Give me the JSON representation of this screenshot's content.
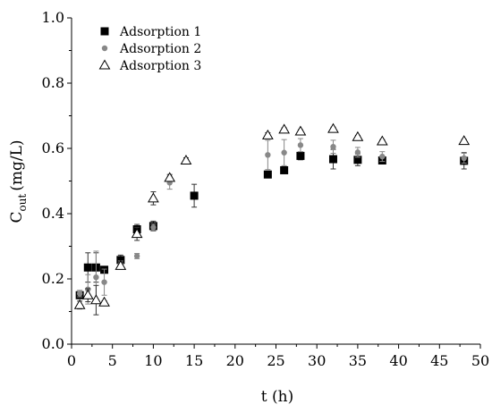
{
  "chart_data": {
    "type": "scatter",
    "title": "",
    "xlabel": "t (h)",
    "ylabel": {
      "main": "C",
      "subscript": "out",
      "unit": "(mg/L)"
    },
    "xlim": [
      0,
      50
    ],
    "ylim": [
      0.0,
      1.0
    ],
    "x_ticks": [
      "0",
      "5",
      "10",
      "15",
      "20",
      "25",
      "30",
      "35",
      "40",
      "45",
      "50"
    ],
    "y_ticks": [
      "0.0",
      "0.2",
      "0.4",
      "0.6",
      "0.8",
      "1.0"
    ],
    "grid": false,
    "legend_position": "top-left",
    "series": [
      {
        "name": "Adsorption 1",
        "marker": "square",
        "color": "#000000",
        "points": [
          {
            "x": 1,
            "y": 0.15,
            "err": 0.01
          },
          {
            "x": 2,
            "y": 0.235,
            "err": 0.045
          },
          {
            "x": 3,
            "y": 0.235,
            "err": 0.045
          },
          {
            "x": 4,
            "y": 0.228,
            "err": 0.01
          },
          {
            "x": 6,
            "y": 0.258,
            "err": 0.015
          },
          {
            "x": 8,
            "y": 0.352,
            "err": 0.015
          },
          {
            "x": 10,
            "y": 0.362,
            "err": 0.015
          },
          {
            "x": 15,
            "y": 0.455,
            "err": 0.035
          },
          {
            "x": 24,
            "y": 0.52,
            "err": 0.0
          },
          {
            "x": 26,
            "y": 0.533,
            "err": 0.008
          },
          {
            "x": 28,
            "y": 0.577,
            "err": 0.012
          },
          {
            "x": 32,
            "y": 0.567,
            "err": 0.03
          },
          {
            "x": 35,
            "y": 0.565,
            "err": 0.018
          },
          {
            "x": 38,
            "y": 0.563,
            "err": 0.01
          },
          {
            "x": 48,
            "y": 0.562,
            "err": 0.025
          }
        ]
      },
      {
        "name": "Adsorption 2",
        "marker": "circle",
        "color": "#888888",
        "points": [
          {
            "x": 1,
            "y": 0.155,
            "err": 0.01
          },
          {
            "x": 2,
            "y": 0.168,
            "err": 0.045
          },
          {
            "x": 3,
            "y": 0.205,
            "err": 0.08
          },
          {
            "x": 4,
            "y": 0.19,
            "err": 0.04
          },
          {
            "x": 6,
            "y": 0.245,
            "err": 0.01
          },
          {
            "x": 8,
            "y": 0.27,
            "err": 0.008
          },
          {
            "x": 10,
            "y": 0.358,
            "err": 0.01
          },
          {
            "x": 12,
            "y": 0.495,
            "err": 0.02
          },
          {
            "x": 24,
            "y": 0.58,
            "err": 0.045
          },
          {
            "x": 26,
            "y": 0.587,
            "err": 0.04
          },
          {
            "x": 28,
            "y": 0.61,
            "err": 0.02
          },
          {
            "x": 32,
            "y": 0.605,
            "err": 0.02
          },
          {
            "x": 35,
            "y": 0.588,
            "err": 0.015
          },
          {
            "x": 38,
            "y": 0.575,
            "err": 0.015
          },
          {
            "x": 48,
            "y": 0.57,
            "err": 0.015
          }
        ]
      },
      {
        "name": "Adsorption 3",
        "marker": "triangle-open",
        "color": "#000000",
        "points": [
          {
            "x": 1,
            "y": 0.12,
            "err": 0.012
          },
          {
            "x": 2,
            "y": 0.15,
            "err": 0.02
          },
          {
            "x": 3,
            "y": 0.135,
            "err": 0.045
          },
          {
            "x": 4,
            "y": 0.128,
            "err": 0.005
          },
          {
            "x": 6,
            "y": 0.24,
            "err": 0.01
          },
          {
            "x": 8,
            "y": 0.338,
            "err": 0.02
          },
          {
            "x": 10,
            "y": 0.447,
            "err": 0.02
          },
          {
            "x": 12,
            "y": 0.51,
            "err": 0.01
          },
          {
            "x": 14,
            "y": 0.563,
            "err": 0.008
          },
          {
            "x": 24,
            "y": 0.64,
            "err": 0.008
          },
          {
            "x": 26,
            "y": 0.658,
            "err": 0.005
          },
          {
            "x": 28,
            "y": 0.652,
            "err": 0.005
          },
          {
            "x": 32,
            "y": 0.66,
            "err": 0.005
          },
          {
            "x": 35,
            "y": 0.635,
            "err": 0.005
          },
          {
            "x": 38,
            "y": 0.622,
            "err": 0.005
          },
          {
            "x": 48,
            "y": 0.623,
            "err": 0.005
          }
        ]
      }
    ]
  }
}
